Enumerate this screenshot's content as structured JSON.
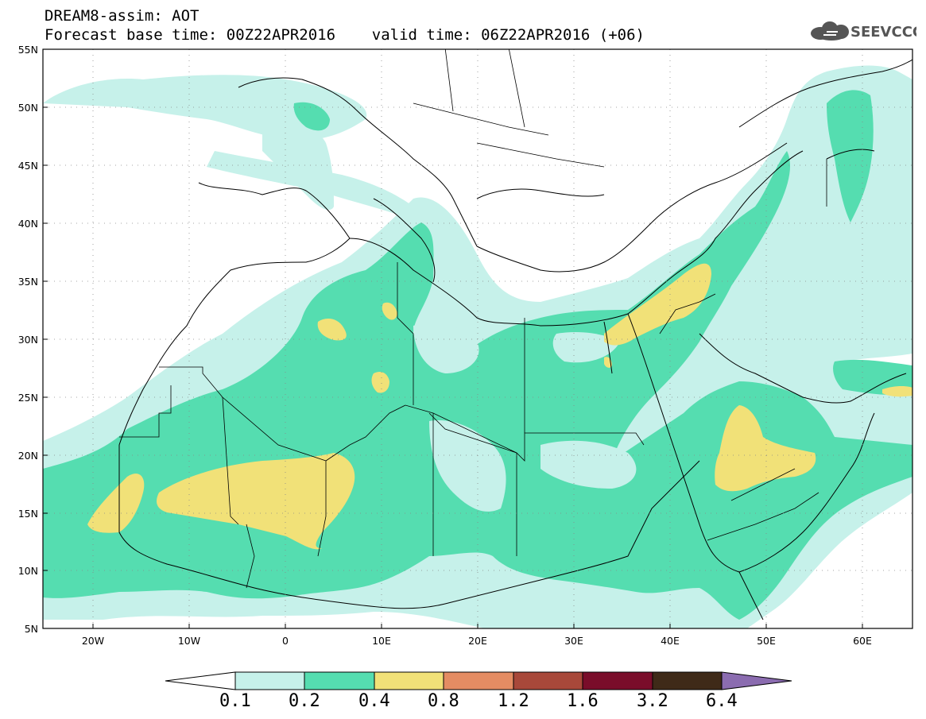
{
  "header": {
    "line1": "DREAM8-assim: AOT",
    "line2": "Forecast base time: 00Z22APR2016    valid time: 06Z22APR2016 (+06)"
  },
  "logo": {
    "text": "SEEVCCC",
    "icon": "cloud-icon"
  },
  "axes": {
    "lat_labels": [
      "55N",
      "50N",
      "45N",
      "40N",
      "35N",
      "30N",
      "25N",
      "20N",
      "15N",
      "10N",
      "5N"
    ],
    "lon_labels": [
      "20W",
      "10W",
      "0",
      "10E",
      "20E",
      "30E",
      "40E",
      "50E",
      "60E"
    ],
    "lon_range": [
      -25,
      65
    ],
    "lat_range": [
      5,
      55
    ]
  },
  "colorbar": {
    "labels": [
      "0.1",
      "0.2",
      "0.4",
      "0.8",
      "1.2",
      "1.6",
      "3.2",
      "6.4"
    ],
    "colors": [
      "#ffffff",
      "#c6f1ea",
      "#55ddb0",
      "#f1e178",
      "#e48c63",
      "#a8483a",
      "#7a0d2a",
      "#3f2a18",
      "#8b6cb0"
    ]
  }
}
